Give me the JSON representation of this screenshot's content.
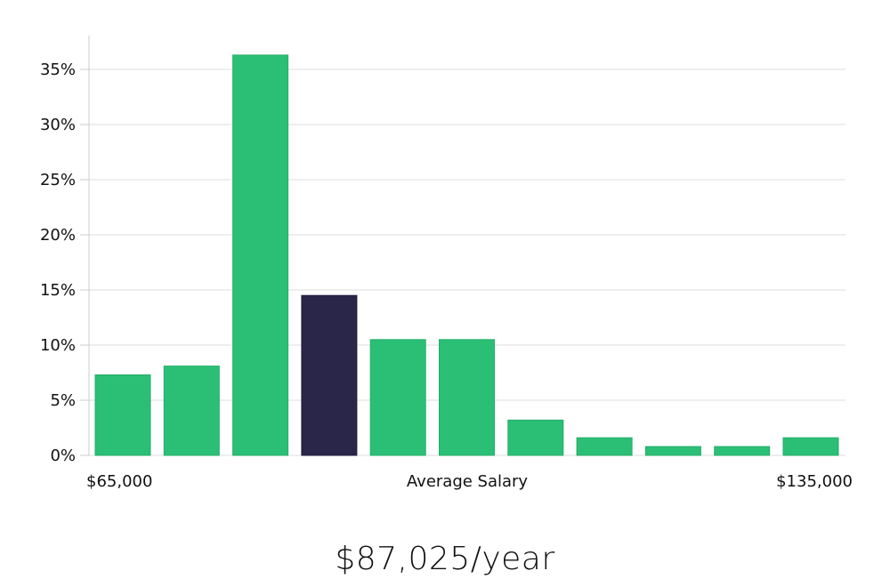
{
  "chart_data": {
    "type": "bar",
    "title": "",
    "xlabel": "Average Salary",
    "ylabel": "",
    "x_range_labels": {
      "min": "$65,000",
      "max": "$135,000"
    },
    "ylim": [
      0,
      38
    ],
    "yticks": [
      0,
      5,
      10,
      15,
      20,
      25,
      30,
      35
    ],
    "ytick_labels": [
      "0%",
      "5%",
      "10%",
      "15%",
      "20%",
      "25%",
      "30%",
      "35%"
    ],
    "values": [
      7.3,
      8.1,
      36.3,
      14.5,
      10.5,
      10.5,
      3.2,
      1.6,
      0.8,
      0.8,
      1.6
    ],
    "highlight_index": 3,
    "colors": {
      "bar": "#2bbf76",
      "bar_edge": "#25ad6a",
      "highlight": "#29264a",
      "grid": "#dddddd",
      "axis": "#cccccc"
    }
  },
  "salary": {
    "display": "$87,025/year"
  }
}
